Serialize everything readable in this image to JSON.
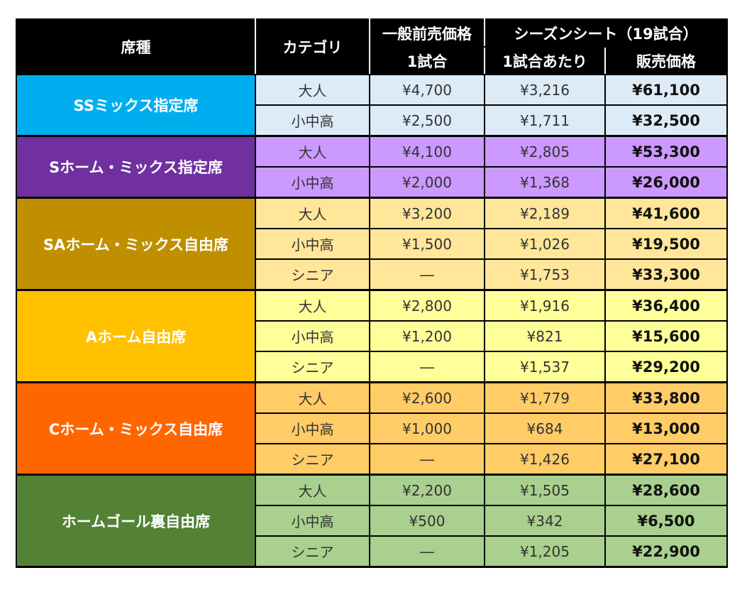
{
  "header": {
    "seat": "席種",
    "category": "カテゴリ",
    "advance": "一般前売価格",
    "season": "シーズンシート（19試合）",
    "per_game": "1試合",
    "per_game_season": "1試合あたり",
    "sale_price": "販売価格"
  },
  "groups": [
    {
      "name": "SSミックス指定席",
      "color": "#00AEEF",
      "row_color": "#DDEBF7",
      "rows": [
        {
          "cat": "大人",
          "adv": "¥4,700",
          "per": "¥3,216",
          "total": "¥61,100"
        },
        {
          "cat": "小中高",
          "adv": "¥2,500",
          "per": "¥1,711",
          "total": "¥32,500"
        }
      ]
    },
    {
      "name": "Sホーム・ミックス指定席",
      "color": "#7030A0",
      "row_color": "#CC99FF",
      "rows": [
        {
          "cat": "大人",
          "adv": "¥4,100",
          "per": "¥2,805",
          "total": "¥53,300"
        },
        {
          "cat": "小中高",
          "adv": "¥2,000",
          "per": "¥1,368",
          "total": "¥26,000"
        }
      ]
    },
    {
      "name": "SAホーム・ミックス自由席",
      "color": "#BF8F00",
      "row_color": "#FFE699",
      "rows": [
        {
          "cat": "大人",
          "adv": "¥3,200",
          "per": "¥2,189",
          "total": "¥41,600"
        },
        {
          "cat": "小中高",
          "adv": "¥1,500",
          "per": "¥1,026",
          "total": "¥19,500"
        },
        {
          "cat": "シニア",
          "adv": "―",
          "per": "¥1,753",
          "total": "¥33,300"
        }
      ]
    },
    {
      "name": "Aホーム自由席",
      "color": "#FFC000",
      "row_color": "#FFFF99",
      "rows": [
        {
          "cat": "大人",
          "adv": "¥2,800",
          "per": "¥1,916",
          "total": "¥36,400"
        },
        {
          "cat": "小中高",
          "adv": "¥1,200",
          "per": "¥821",
          "total": "¥15,600"
        },
        {
          "cat": "シニア",
          "adv": "―",
          "per": "¥1,537",
          "total": "¥29,200"
        }
      ]
    },
    {
      "name": "Cホーム・ミックス自由席",
      "color": "#FF6600",
      "row_color": "#FFCC66",
      "rows": [
        {
          "cat": "大人",
          "adv": "¥2,600",
          "per": "¥1,779",
          "total": "¥33,800"
        },
        {
          "cat": "小中高",
          "adv": "¥1,000",
          "per": "¥684",
          "total": "¥13,000"
        },
        {
          "cat": "シニア",
          "adv": "―",
          "per": "¥1,426",
          "total": "¥27,100"
        }
      ]
    },
    {
      "name": "ホームゴール裏自由席",
      "color": "#548235",
      "row_color": "#A9D08E",
      "rows": [
        {
          "cat": "大人",
          "adv": "¥2,200",
          "per": "¥1,505",
          "total": "¥28,600"
        },
        {
          "cat": "小中高",
          "adv": "¥500",
          "per": "¥342",
          "total": "¥6,500"
        },
        {
          "cat": "シニア",
          "adv": "―",
          "per": "¥1,205",
          "total": "¥22,900"
        }
      ]
    }
  ]
}
